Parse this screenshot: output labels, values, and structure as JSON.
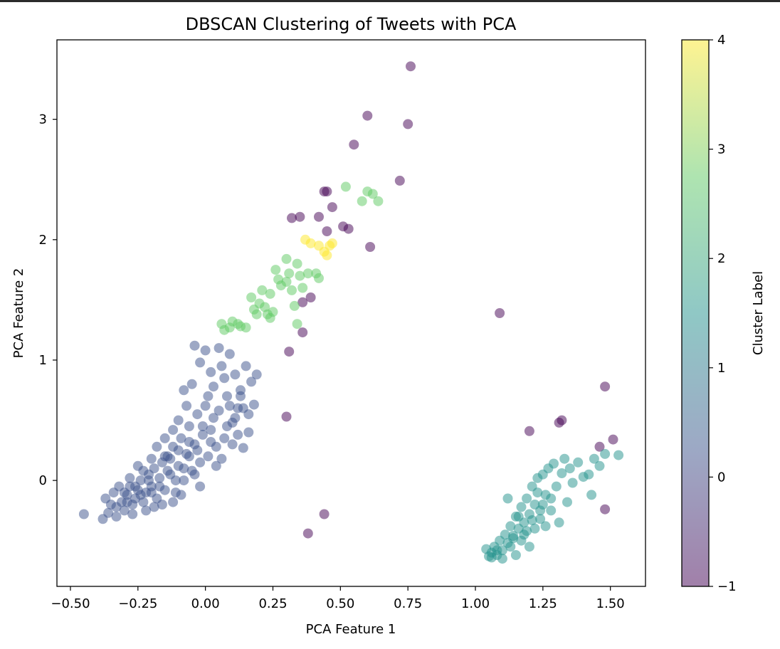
{
  "chart_data": {
    "type": "scatter",
    "title": "DBSCAN Clustering of Tweets with PCA",
    "xlabel": "PCA Feature 1",
    "ylabel": "PCA Feature 2",
    "xlim": [
      -0.55,
      1.63
    ],
    "ylim": [
      -0.88,
      3.66
    ],
    "xticks": [
      -0.5,
      -0.25,
      0.0,
      0.25,
      0.5,
      0.75,
      1.0,
      1.25,
      1.5
    ],
    "xtick_labels": [
      "−0.50",
      "−0.25",
      "0.00",
      "0.25",
      "0.50",
      "0.75",
      "1.00",
      "1.25",
      "1.50"
    ],
    "yticks": [
      0,
      1,
      2,
      3
    ],
    "ytick_labels": [
      "0",
      "1",
      "2",
      "3"
    ],
    "grid": false,
    "legend": "none",
    "point_alpha": 0.5,
    "colormap": "viridis",
    "colorbar": {
      "label": "Cluster Label",
      "range": [
        -1,
        4
      ],
      "ticks": [
        -1,
        0,
        1,
        2,
        3,
        4
      ],
      "tick_labels": [
        "−1",
        "0",
        "1",
        "2",
        "3",
        "4"
      ],
      "colors": [
        "#440154",
        "#3b528b",
        "#21918c",
        "#5ec962",
        "#fde725"
      ]
    },
    "clusters": [
      {
        "label": -1,
        "color": "#440154",
        "points": [
          [
            0.76,
            3.44
          ],
          [
            0.6,
            3.03
          ],
          [
            0.75,
            2.96
          ],
          [
            0.55,
            2.79
          ],
          [
            0.72,
            2.49
          ],
          [
            0.44,
            2.4
          ],
          [
            0.45,
            2.4
          ],
          [
            0.47,
            2.27
          ],
          [
            0.32,
            2.18
          ],
          [
            0.35,
            2.19
          ],
          [
            0.42,
            2.19
          ],
          [
            0.51,
            2.11
          ],
          [
            0.53,
            2.09
          ],
          [
            0.45,
            2.07
          ],
          [
            0.61,
            1.94
          ],
          [
            0.39,
            1.52
          ],
          [
            0.36,
            1.48
          ],
          [
            0.36,
            1.23
          ],
          [
            0.31,
            1.07
          ],
          [
            0.3,
            0.53
          ],
          [
            1.09,
            1.39
          ],
          [
            1.48,
            0.78
          ],
          [
            1.32,
            0.5
          ],
          [
            1.31,
            0.48
          ],
          [
            1.2,
            0.41
          ],
          [
            1.51,
            0.34
          ],
          [
            1.46,
            0.28
          ],
          [
            1.48,
            -0.24
          ],
          [
            0.44,
            -0.28
          ],
          [
            0.38,
            -0.44
          ]
        ]
      },
      {
        "label": 0,
        "color": "#3b528b",
        "points": [
          [
            -0.45,
            -0.28
          ],
          [
            -0.38,
            -0.32
          ],
          [
            -0.36,
            -0.27
          ],
          [
            -0.35,
            -0.2
          ],
          [
            -0.37,
            -0.15
          ],
          [
            -0.34,
            -0.1
          ],
          [
            -0.33,
            -0.22
          ],
          [
            -0.31,
            -0.18
          ],
          [
            -0.3,
            -0.25
          ],
          [
            -0.29,
            -0.12
          ],
          [
            -0.28,
            -0.05
          ],
          [
            -0.27,
            -0.2
          ],
          [
            -0.26,
            -0.15
          ],
          [
            -0.25,
            -0.08
          ],
          [
            -0.24,
            0.0
          ],
          [
            -0.23,
            -0.18
          ],
          [
            -0.22,
            -0.1
          ],
          [
            -0.21,
            0.05
          ],
          [
            -0.2,
            -0.05
          ],
          [
            -0.19,
            0.1
          ],
          [
            -0.18,
            -0.15
          ],
          [
            -0.17,
            0.02
          ],
          [
            -0.16,
            0.15
          ],
          [
            -0.15,
            -0.08
          ],
          [
            -0.14,
            0.2
          ],
          [
            -0.13,
            0.05
          ],
          [
            -0.12,
            0.28
          ],
          [
            -0.11,
            -0.1
          ],
          [
            -0.1,
            0.12
          ],
          [
            -0.09,
            0.35
          ],
          [
            -0.08,
            0.0
          ],
          [
            -0.07,
            0.22
          ],
          [
            -0.06,
            0.45
          ],
          [
            -0.05,
            0.08
          ],
          [
            -0.04,
            0.3
          ],
          [
            -0.03,
            0.55
          ],
          [
            -0.02,
            0.15
          ],
          [
            -0.01,
            0.38
          ],
          [
            0.0,
            0.62
          ],
          [
            0.01,
            0.2
          ],
          [
            0.02,
            0.42
          ],
          [
            0.03,
            0.78
          ],
          [
            0.04,
            0.28
          ],
          [
            0.05,
            0.58
          ],
          [
            0.06,
            0.95
          ],
          [
            0.07,
            0.35
          ],
          [
            0.08,
            0.7
          ],
          [
            0.09,
            1.05
          ],
          [
            0.1,
            0.48
          ],
          [
            0.11,
            0.88
          ],
          [
            0.12,
            0.6
          ],
          [
            0.13,
            0.75
          ],
          [
            0.14,
            0.27
          ],
          [
            0.15,
            0.95
          ],
          [
            0.16,
            0.55
          ],
          [
            0.17,
            0.82
          ],
          [
            0.18,
            0.63
          ],
          [
            0.19,
            0.88
          ],
          [
            -0.04,
            1.12
          ],
          [
            0.0,
            1.08
          ],
          [
            0.05,
            1.1
          ],
          [
            -0.02,
            0.98
          ],
          [
            0.02,
            0.9
          ],
          [
            -0.08,
            0.75
          ],
          [
            -0.05,
            0.8
          ],
          [
            -0.1,
            0.5
          ],
          [
            -0.12,
            0.42
          ],
          [
            -0.2,
            0.18
          ],
          [
            -0.25,
            0.12
          ],
          [
            -0.18,
            0.28
          ],
          [
            -0.3,
            -0.1
          ],
          [
            -0.32,
            -0.05
          ],
          [
            -0.28,
            0.02
          ],
          [
            -0.15,
            0.35
          ],
          [
            -0.06,
            0.2
          ],
          [
            0.08,
            0.45
          ],
          [
            0.1,
            0.3
          ],
          [
            0.12,
            0.38
          ],
          [
            0.04,
            0.12
          ],
          [
            -0.02,
            -0.05
          ],
          [
            -0.09,
            -0.12
          ],
          [
            -0.16,
            -0.2
          ],
          [
            -0.22,
            -0.25
          ],
          [
            -0.12,
            -0.18
          ],
          [
            -0.04,
            0.05
          ],
          [
            0.06,
            0.18
          ],
          [
            0.14,
            0.6
          ],
          [
            0.16,
            0.4
          ],
          [
            0.03,
            0.52
          ],
          [
            -0.07,
            0.62
          ],
          [
            -0.14,
            0.08
          ],
          [
            -0.2,
            -0.1
          ],
          [
            -0.26,
            -0.05
          ],
          [
            -0.33,
            -0.3
          ],
          [
            -0.27,
            -0.28
          ],
          [
            -0.19,
            -0.22
          ],
          [
            -0.11,
            0.0
          ],
          [
            -0.03,
            0.25
          ],
          [
            0.01,
            0.7
          ],
          [
            0.07,
            0.85
          ],
          [
            -0.01,
            0.45
          ],
          [
            0.09,
            0.62
          ],
          [
            -0.13,
            0.18
          ],
          [
            -0.21,
            0.0
          ],
          [
            -0.24,
            -0.12
          ],
          [
            -0.17,
            -0.05
          ],
          [
            -0.08,
            0.1
          ],
          [
            0.02,
            0.32
          ],
          [
            0.11,
            0.52
          ],
          [
            0.13,
            0.7
          ],
          [
            -0.06,
            0.32
          ],
          [
            -0.1,
            0.25
          ],
          [
            -0.15,
            0.2
          ],
          [
            -0.23,
            0.08
          ],
          [
            -0.29,
            -0.18
          ]
        ]
      },
      {
        "label": 1,
        "color": "#21918c",
        "points": [
          [
            1.04,
            -0.57
          ],
          [
            1.05,
            -0.63
          ],
          [
            1.06,
            -0.6
          ],
          [
            1.07,
            -0.55
          ],
          [
            1.08,
            -0.62
          ],
          [
            1.09,
            -0.5
          ],
          [
            1.1,
            -0.58
          ],
          [
            1.11,
            -0.45
          ],
          [
            1.12,
            -0.52
          ],
          [
            1.13,
            -0.38
          ],
          [
            1.14,
            -0.46
          ],
          [
            1.15,
            -0.3
          ],
          [
            1.16,
            -0.4
          ],
          [
            1.17,
            -0.22
          ],
          [
            1.18,
            -0.35
          ],
          [
            1.19,
            -0.15
          ],
          [
            1.2,
            -0.28
          ],
          [
            1.21,
            -0.05
          ],
          [
            1.22,
            -0.2
          ],
          [
            1.23,
            0.02
          ],
          [
            1.24,
            -0.32
          ],
          [
            1.25,
            0.05
          ],
          [
            1.26,
            -0.12
          ],
          [
            1.27,
            0.1
          ],
          [
            1.28,
            -0.25
          ],
          [
            1.29,
            0.14
          ],
          [
            1.3,
            -0.05
          ],
          [
            1.31,
            -0.35
          ],
          [
            1.32,
            0.06
          ],
          [
            1.33,
            0.18
          ],
          [
            1.34,
            -0.18
          ],
          [
            1.35,
            0.1
          ],
          [
            1.36,
            -0.02
          ],
          [
            1.38,
            0.15
          ],
          [
            1.4,
            0.03
          ],
          [
            1.42,
            0.05
          ],
          [
            1.43,
            -0.12
          ],
          [
            1.44,
            0.18
          ],
          [
            1.46,
            0.12
          ],
          [
            1.48,
            0.22
          ],
          [
            1.53,
            0.21
          ],
          [
            1.12,
            -0.15
          ],
          [
            1.14,
            -0.48
          ],
          [
            1.16,
            -0.3
          ],
          [
            1.18,
            -0.45
          ],
          [
            1.2,
            -0.55
          ],
          [
            1.22,
            -0.4
          ],
          [
            1.24,
            -0.25
          ],
          [
            1.26,
            -0.38
          ],
          [
            1.28,
            -0.15
          ],
          [
            1.15,
            -0.62
          ],
          [
            1.1,
            -0.65
          ],
          [
            1.08,
            -0.58
          ],
          [
            1.17,
            -0.5
          ],
          [
            1.21,
            -0.33
          ],
          [
            1.23,
            -0.1
          ],
          [
            1.25,
            -0.2
          ],
          [
            1.19,
            -0.42
          ],
          [
            1.13,
            -0.55
          ],
          [
            1.06,
            -0.64
          ]
        ]
      },
      {
        "label": 2,
        "color": "#5ec962",
        "points": [
          [
            0.06,
            1.3
          ],
          [
            0.07,
            1.25
          ],
          [
            0.09,
            1.27
          ],
          [
            0.1,
            1.32
          ],
          [
            0.13,
            1.28
          ],
          [
            0.15,
            1.27
          ],
          [
            0.17,
            1.52
          ],
          [
            0.18,
            1.42
          ],
          [
            0.19,
            1.38
          ],
          [
            0.2,
            1.47
          ],
          [
            0.21,
            1.58
          ],
          [
            0.22,
            1.44
          ],
          [
            0.23,
            1.38
          ],
          [
            0.24,
            1.55
          ],
          [
            0.25,
            1.4
          ],
          [
            0.26,
            1.75
          ],
          [
            0.27,
            1.67
          ],
          [
            0.28,
            1.62
          ],
          [
            0.3,
            1.84
          ],
          [
            0.31,
            1.72
          ],
          [
            0.32,
            1.58
          ],
          [
            0.34,
            1.8
          ],
          [
            0.35,
            1.7
          ],
          [
            0.36,
            1.6
          ],
          [
            0.38,
            1.72
          ],
          [
            0.41,
            1.72
          ],
          [
            0.42,
            1.68
          ],
          [
            0.33,
            1.45
          ],
          [
            0.34,
            1.3
          ],
          [
            0.24,
            1.35
          ],
          [
            0.12,
            1.3
          ],
          [
            0.3,
            1.65
          ],
          [
            0.52,
            2.44
          ],
          [
            0.6,
            2.4
          ],
          [
            0.58,
            2.32
          ],
          [
            0.62,
            2.38
          ],
          [
            0.64,
            2.32
          ]
        ]
      },
      {
        "label": 4,
        "color": "#fde725",
        "points": [
          [
            0.37,
            2.0
          ],
          [
            0.39,
            1.97
          ],
          [
            0.42,
            1.95
          ],
          [
            0.44,
            1.9
          ],
          [
            0.45,
            1.87
          ],
          [
            0.46,
            1.95
          ],
          [
            0.47,
            1.97
          ]
        ]
      }
    ]
  }
}
